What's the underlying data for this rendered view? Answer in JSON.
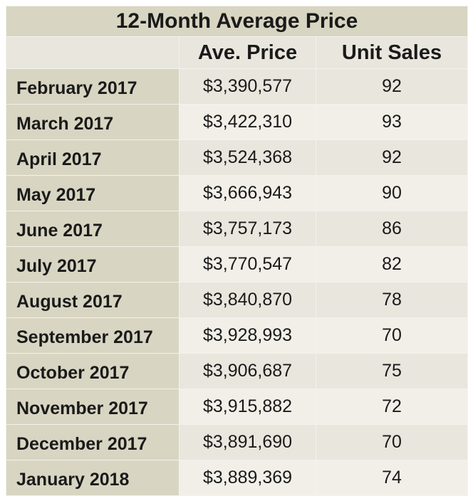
{
  "chart_data": {
    "type": "table",
    "title": "12-Month Average Price",
    "columns": [
      "",
      "Ave. Price",
      "Unit Sales"
    ],
    "rows": [
      {
        "month": "February 2017",
        "price": "$3,390,577",
        "units": "92"
      },
      {
        "month": "March 2017",
        "price": "$3,422,310",
        "units": "93"
      },
      {
        "month": "April 2017",
        "price": "$3,524,368",
        "units": "92"
      },
      {
        "month": "May 2017",
        "price": "$3,666,943",
        "units": "90"
      },
      {
        "month": "June 2017",
        "price": "$3,757,173",
        "units": "86"
      },
      {
        "month": "July 2017",
        "price": "$3,770,547",
        "units": "82"
      },
      {
        "month": "August 2017",
        "price": "$3,840,870",
        "units": "78"
      },
      {
        "month": "September 2017",
        "price": "$3,928,993",
        "units": "70"
      },
      {
        "month": "October 2017",
        "price": "$3,906,687",
        "units": "75"
      },
      {
        "month": "November 2017",
        "price": "$3,915,882",
        "units": "72"
      },
      {
        "month": "December 2017",
        "price": "$3,891,690",
        "units": "70"
      },
      {
        "month": "January 2018",
        "price": "$3,889,369",
        "units": "74"
      }
    ]
  },
  "colors": {
    "title_bg": "#d8d5c2",
    "header_bg": "#e8e6dd",
    "month_bg": "#d8d5c2",
    "row_odd_bg": "#e8e6dd",
    "row_even_bg": "#f1efe8",
    "text": "#1a1a1a"
  }
}
